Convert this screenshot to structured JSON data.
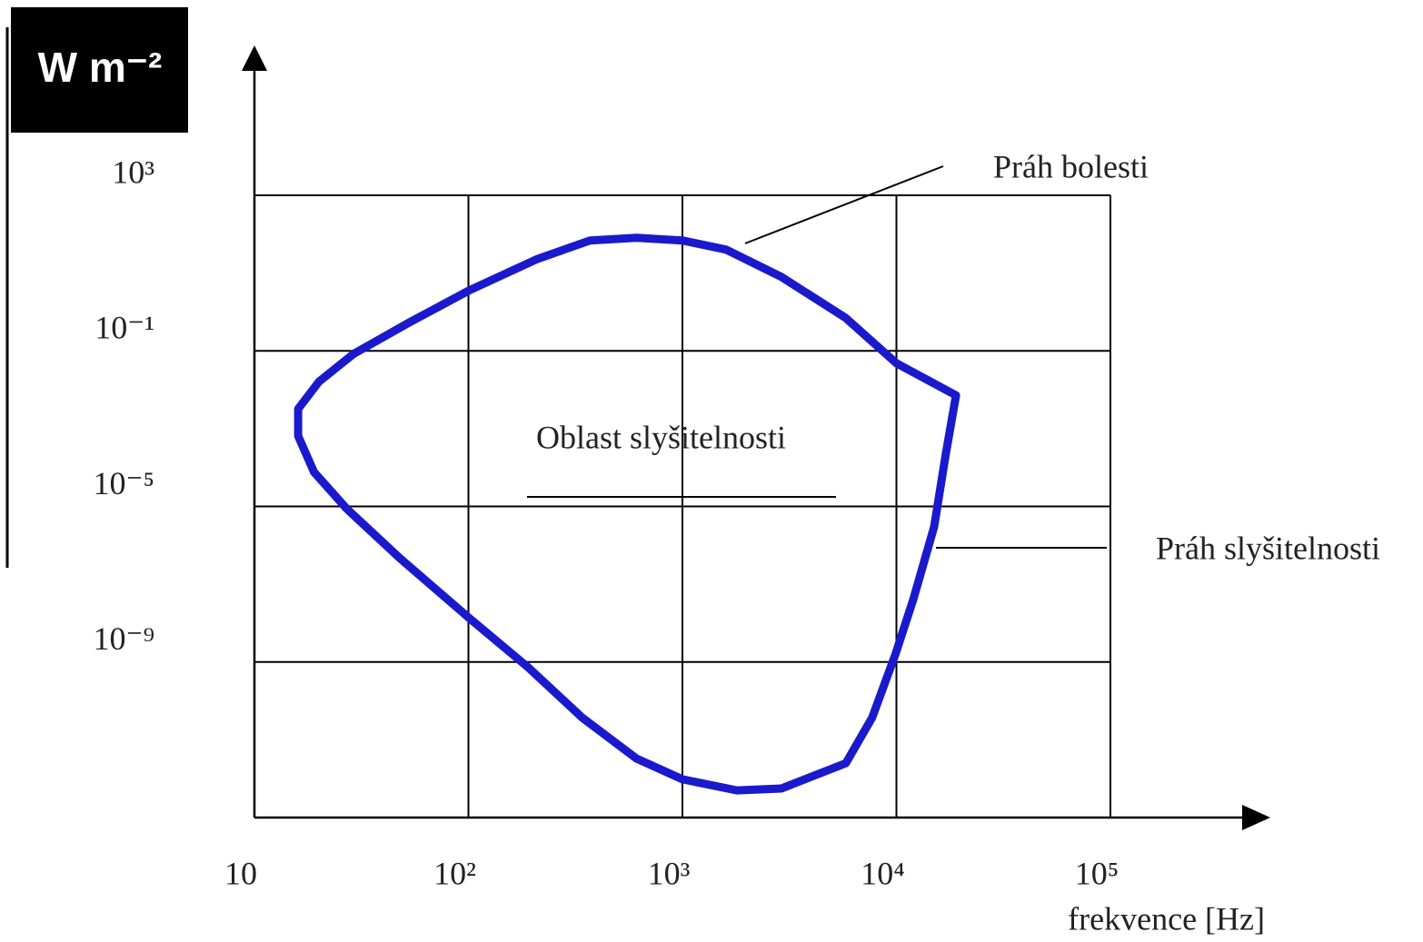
{
  "chart_data": {
    "type": "line",
    "y_label": "W m⁻²",
    "x_label": "frekvence [Hz]",
    "log_x": true,
    "log_y": true,
    "grid": true,
    "xlim": [
      10,
      100000
    ],
    "ylim": [
      1e-13,
      1000
    ],
    "xticks": [
      10,
      {
        "value": 100,
        "label": "10²"
      },
      {
        "value": 1000,
        "label": "10³"
      },
      {
        "value": 10000,
        "label": "10⁴"
      },
      {
        "value": 100000,
        "label": "10⁵"
      }
    ],
    "yticks": [
      {
        "value": 1000,
        "label": "10³"
      },
      {
        "value": 0.1,
        "label": "10⁻¹"
      },
      {
        "value": 1e-05,
        "label": "10⁻⁵"
      },
      {
        "value": 1e-09,
        "label": "10⁻⁹"
      }
    ],
    "color": "#1a1acc",
    "x": [
      19000,
      10000,
      5800,
      2900,
      1600,
      1000,
      610,
      370,
      210,
      100,
      53,
      29,
      20,
      16,
      16,
      19,
      27,
      48,
      100,
      190,
      340,
      610,
      1000,
      1800,
      2900,
      5800,
      7700,
      9900,
      12000,
      15000,
      17000,
      19000
    ],
    "values": [
      0.0072,
      0.048,
      0.7,
      8,
      40,
      69,
      81,
      69,
      23,
      3.5,
      0.54,
      0.083,
      0.016,
      0.0032,
      0.00065,
      7.6e-05,
      8.7e-06,
      4.6e-07,
      1.4e-08,
      7.3e-10,
      3.7e-11,
      3.3e-12,
      9.6e-13,
      5e-13,
      5.6e-13,
      2.5e-12,
      3.7e-11,
      1.6e-09,
      4.1e-08,
      3e-06,
      0.00022,
      0.0072
    ],
    "annotations": [
      {
        "text": "Práh bolesti",
        "color": "#c03030"
      },
      {
        "text": "Oblast slyšitelnosti",
        "color": "#1a1a80"
      },
      {
        "text": "Práh slyšitelnosti",
        "color": "#2a8a2a"
      }
    ]
  }
}
